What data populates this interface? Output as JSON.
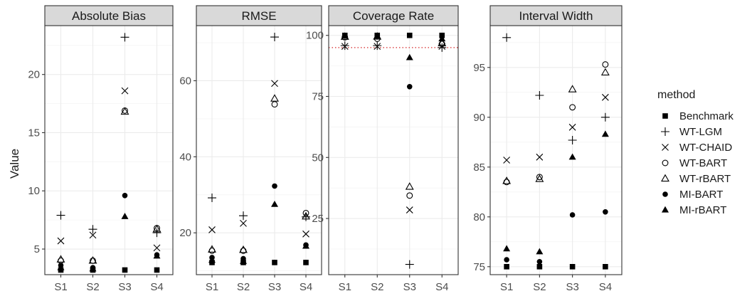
{
  "chart_data": {
    "type": "scatter",
    "ylabel": "Value",
    "legend": {
      "title": "method",
      "position": "right"
    },
    "categories": [
      "S1",
      "S2",
      "S3",
      "S4"
    ],
    "methods": [
      {
        "name": "Benchmark",
        "shape": "square"
      },
      {
        "name": "WT-LGM",
        "shape": "plus"
      },
      {
        "name": "WT-CHAID",
        "shape": "cross"
      },
      {
        "name": "WT-BART",
        "shape": "circle-open"
      },
      {
        "name": "WT-rBART",
        "shape": "triangle-open"
      },
      {
        "name": "MI-BART",
        "shape": "circle-filled"
      },
      {
        "name": "MI-rBART",
        "shape": "triangle-filled"
      }
    ],
    "panels": [
      {
        "title": "Absolute Bias",
        "ylim": [
          2.8,
          24.2
        ],
        "yticks": [
          5,
          10,
          15,
          20
        ],
        "series": [
          {
            "name": "Benchmark",
            "values": [
              3.2,
              3.2,
              3.2,
              3.2
            ]
          },
          {
            "name": "WT-LGM",
            "values": [
              7.9,
              6.7,
              23.2,
              6.4
            ]
          },
          {
            "name": "WT-CHAID",
            "values": [
              5.7,
              6.2,
              18.6,
              5.1
            ]
          },
          {
            "name": "WT-BART",
            "values": [
              4.0,
              4.0,
              16.9,
              6.8
            ]
          },
          {
            "name": "WT-rBART",
            "values": [
              4.1,
              4.0,
              16.8,
              6.7
            ]
          },
          {
            "name": "MI-BART",
            "values": [
              3.6,
              3.4,
              9.6,
              4.5
            ]
          },
          {
            "name": "MI-rBART",
            "values": [
              3.4,
              3.3,
              7.8,
              4.4
            ]
          }
        ]
      },
      {
        "title": "RMSE",
        "ylim": [
          9,
          74.5
        ],
        "yticks": [
          20,
          40,
          60
        ],
        "series": [
          {
            "name": "Benchmark",
            "values": [
              12.2,
              12.2,
              12.2,
              12.2
            ]
          },
          {
            "name": "WT-LGM",
            "values": [
              29.2,
              24.5,
              71.5,
              24.2
            ]
          },
          {
            "name": "WT-CHAID",
            "values": [
              20.8,
              22.5,
              59.3,
              19.7
            ]
          },
          {
            "name": "WT-BART",
            "values": [
              15.3,
              15.3,
              53.8,
              25.2
            ]
          },
          {
            "name": "WT-rBART",
            "values": [
              15.6,
              15.5,
              55.3,
              24.3
            ]
          },
          {
            "name": "MI-BART",
            "values": [
              13.5,
              13.2,
              32.3,
              16.8
            ]
          },
          {
            "name": "MI-rBART",
            "values": [
              12.8,
              12.5,
              27.5,
              16.5
            ]
          }
        ]
      },
      {
        "title": "Coverage Rate",
        "ylim": [
          2,
          104
        ],
        "yticks": [
          25,
          50,
          75,
          100
        ],
        "reference_line": 95,
        "series": [
          {
            "name": "Benchmark",
            "values": [
              100,
              100,
              100,
              100
            ]
          },
          {
            "name": "WT-LGM",
            "values": [
              95.8,
              95.8,
              6.2,
              95.0
            ]
          },
          {
            "name": "WT-CHAID",
            "values": [
              95.5,
              95.5,
              28.5,
              95.5
            ]
          },
          {
            "name": "WT-BART",
            "values": [
              99.2,
              98.6,
              34.4,
              96.5
            ]
          },
          {
            "name": "WT-rBART",
            "values": [
              99.4,
              99.5,
              38.0,
              96.8
            ]
          },
          {
            "name": "MI-BART",
            "values": [
              99.8,
              99.8,
              79.0,
              99.6
            ]
          },
          {
            "name": "MI-rBART",
            "values": [
              99.7,
              99.7,
              90.9,
              98.6
            ]
          }
        ]
      },
      {
        "title": "Interval Width",
        "ylim": [
          74.2,
          99.2
        ],
        "yticks": [
          75,
          80,
          85,
          90,
          95
        ],
        "series": [
          {
            "name": "Benchmark",
            "values": [
              75.0,
              75.0,
              75.0,
              75.0
            ]
          },
          {
            "name": "WT-LGM",
            "values": [
              98.0,
              92.2,
              87.7,
              90.0
            ]
          },
          {
            "name": "WT-CHAID",
            "values": [
              85.7,
              86.0,
              89.0,
              92.0
            ]
          },
          {
            "name": "WT-BART",
            "values": [
              83.5,
              84.0,
              91.0,
              95.3
            ]
          },
          {
            "name": "WT-rBART",
            "values": [
              83.6,
              83.8,
              92.8,
              94.5
            ]
          },
          {
            "name": "MI-BART",
            "values": [
              75.7,
              75.5,
              80.2,
              80.5
            ]
          },
          {
            "name": "MI-rBART",
            "values": [
              76.8,
              76.5,
              86.0,
              88.3
            ]
          }
        ]
      }
    ]
  }
}
